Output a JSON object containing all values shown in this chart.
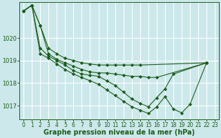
{
  "background_color": "#cce8ea",
  "grid_color": "#ffffff",
  "line_color": "#1a5c1a",
  "marker_color": "#1a5c1a",
  "xlabel": "Graphe pression niveau de la mer (hPa)",
  "xlabel_fontsize": 7,
  "xtick_fontsize": 5.5,
  "ytick_fontsize": 6,
  "ytick_color": "#1a5c1a",
  "xtick_color": "#1a5c1a",
  "xlabel_color": "#1a5c1a",
  "ylim": [
    1016.4,
    1021.6
  ],
  "xlim": [
    -0.5,
    23.5
  ],
  "yticks": [
    1017,
    1018,
    1019,
    1020
  ],
  "xticks": [
    0,
    1,
    2,
    3,
    4,
    5,
    6,
    7,
    8,
    9,
    10,
    11,
    12,
    13,
    14,
    15,
    16,
    17,
    18,
    19,
    20,
    21,
    22,
    23
  ],
  "series_x": [
    [
      0,
      1,
      2,
      3,
      4,
      5,
      6,
      7,
      8,
      9,
      10,
      11,
      12,
      13,
      14,
      22
    ],
    [
      0,
      1,
      2,
      3,
      4,
      5,
      6,
      7,
      8,
      9,
      10,
      11,
      12,
      13,
      14,
      15,
      16,
      22
    ],
    [
      0,
      1,
      2,
      3,
      4,
      5,
      6,
      7,
      8,
      9,
      10,
      11,
      12,
      13,
      14,
      15,
      16,
      17,
      18,
      22
    ],
    [
      0,
      1,
      2,
      3,
      4,
      5,
      6,
      7,
      8,
      9,
      10,
      11,
      12,
      13,
      14,
      15,
      16,
      17,
      18,
      19,
      20,
      22
    ]
  ],
  "series_y": [
    [
      1021.2,
      1021.45,
      1020.55,
      1019.55,
      1019.3,
      1019.1,
      1019.0,
      1018.9,
      1018.85,
      1018.8,
      1018.8,
      1018.8,
      1018.8,
      1018.8,
      1018.8,
      1018.9
    ],
    [
      1021.2,
      1021.45,
      1020.55,
      1019.3,
      1019.05,
      1018.9,
      1018.75,
      1018.6,
      1018.5,
      1018.45,
      1018.45,
      1018.4,
      1018.35,
      1018.3,
      1018.3,
      1018.25,
      1018.25,
      1018.9
    ],
    [
      1021.2,
      1021.45,
      1019.55,
      1019.2,
      1019.0,
      1018.8,
      1018.55,
      1018.4,
      1018.35,
      1018.3,
      1018.1,
      1017.9,
      1017.6,
      1017.3,
      1017.1,
      1016.95,
      1017.35,
      1017.75,
      1018.4,
      1018.9
    ],
    [
      1021.2,
      1021.45,
      1019.3,
      1019.1,
      1018.85,
      1018.6,
      1018.4,
      1018.25,
      1018.1,
      1017.95,
      1017.7,
      1017.45,
      1017.2,
      1016.95,
      1016.8,
      1016.65,
      1016.95,
      1017.4,
      1016.85,
      1016.68,
      1017.05,
      1018.9
    ]
  ]
}
